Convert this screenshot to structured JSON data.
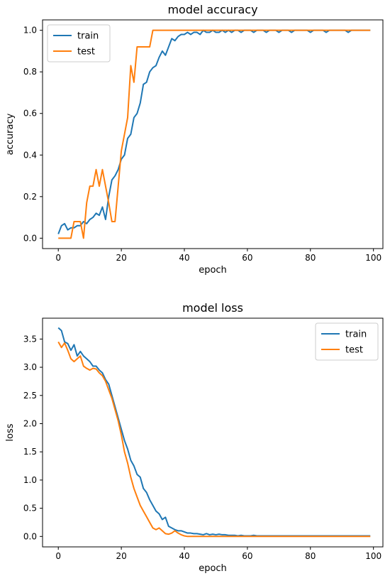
{
  "chart_data": [
    {
      "type": "line",
      "title": "model accuracy",
      "xlabel": "epoch",
      "ylabel": "accuracy",
      "xlim": [
        -5,
        103
      ],
      "ylim": [
        -0.05,
        1.05
      ],
      "xticks": [
        0,
        20,
        40,
        60,
        80,
        100
      ],
      "yticks": [
        0.0,
        0.2,
        0.4,
        0.6,
        0.8,
        1.0
      ],
      "tick_labels_x": [
        "0",
        "20",
        "40",
        "60",
        "80",
        "100"
      ],
      "tick_labels_y": [
        "0.0",
        "0.2",
        "0.4",
        "0.6",
        "0.8",
        "1.0"
      ],
      "legend_position": "upper-left",
      "series": [
        {
          "name": "train",
          "color": "#1f77b4",
          "x": [
            0,
            1,
            2,
            3,
            4,
            5,
            6,
            7,
            8,
            9,
            10,
            11,
            12,
            13,
            14,
            15,
            16,
            17,
            18,
            19,
            20,
            21,
            22,
            23,
            24,
            25,
            26,
            27,
            28,
            29,
            30,
            31,
            32,
            33,
            34,
            35,
            36,
            37,
            38,
            39,
            40,
            41,
            42,
            43,
            44,
            45,
            46,
            47,
            48,
            49,
            50,
            51,
            52,
            53,
            54,
            55,
            56,
            57,
            58,
            59,
            60,
            61,
            62,
            63,
            64,
            65,
            66,
            67,
            68,
            69,
            70,
            71,
            72,
            73,
            74,
            75,
            76,
            77,
            78,
            79,
            80,
            81,
            82,
            83,
            84,
            85,
            86,
            87,
            88,
            89,
            90,
            91,
            92,
            93,
            94,
            95,
            96,
            97,
            98,
            99
          ],
          "y": [
            0.02,
            0.06,
            0.07,
            0.04,
            0.05,
            0.05,
            0.06,
            0.06,
            0.08,
            0.07,
            0.09,
            0.1,
            0.12,
            0.11,
            0.15,
            0.09,
            0.2,
            0.28,
            0.3,
            0.33,
            0.38,
            0.4,
            0.48,
            0.5,
            0.58,
            0.6,
            0.65,
            0.74,
            0.75,
            0.8,
            0.82,
            0.83,
            0.87,
            0.9,
            0.88,
            0.92,
            0.96,
            0.95,
            0.97,
            0.98,
            0.98,
            0.99,
            0.98,
            0.99,
            0.99,
            0.98,
            1.0,
            0.99,
            0.99,
            1.0,
            0.99,
            0.99,
            1.0,
            0.99,
            1.0,
            0.99,
            1.0,
            1.0,
            0.99,
            1.0,
            1.0,
            1.0,
            0.99,
            1.0,
            1.0,
            1.0,
            0.99,
            1.0,
            1.0,
            1.0,
            0.99,
            1.0,
            1.0,
            1.0,
            0.99,
            1.0,
            1.0,
            1.0,
            1.0,
            1.0,
            0.99,
            1.0,
            1.0,
            1.0,
            1.0,
            0.99,
            1.0,
            1.0,
            1.0,
            1.0,
            1.0,
            1.0,
            0.99,
            1.0,
            1.0,
            1.0,
            1.0,
            1.0,
            1.0,
            1.0
          ]
        },
        {
          "name": "test",
          "color": "#ff7f0e",
          "x": [
            0,
            1,
            2,
            3,
            4,
            5,
            6,
            7,
            8,
            9,
            10,
            11,
            12,
            13,
            14,
            15,
            16,
            17,
            18,
            19,
            20,
            21,
            22,
            23,
            24,
            25,
            26,
            27,
            28,
            29,
            30,
            31,
            32,
            33,
            34,
            35,
            36,
            37,
            38,
            39,
            40,
            41,
            42,
            43,
            44,
            45,
            46,
            47,
            48,
            49,
            50,
            51,
            52,
            53,
            54,
            55,
            56,
            57,
            58,
            59,
            60,
            61,
            62,
            63,
            64,
            65,
            66,
            67,
            68,
            69,
            70,
            71,
            72,
            73,
            74,
            75,
            76,
            77,
            78,
            79,
            80,
            81,
            82,
            83,
            84,
            85,
            86,
            87,
            88,
            89,
            90,
            91,
            92,
            93,
            94,
            95,
            96,
            97,
            98,
            99
          ],
          "y": [
            0.0,
            0.0,
            0.0,
            0.0,
            0.0,
            0.08,
            0.08,
            0.08,
            0.0,
            0.17,
            0.25,
            0.25,
            0.33,
            0.25,
            0.33,
            0.25,
            0.17,
            0.08,
            0.08,
            0.25,
            0.42,
            0.5,
            0.58,
            0.83,
            0.75,
            0.92,
            0.92,
            0.92,
            0.92,
            0.92,
            1.0,
            1.0,
            1.0,
            1.0,
            1.0,
            1.0,
            1.0,
            1.0,
            1.0,
            1.0,
            1.0,
            1.0,
            1.0,
            1.0,
            1.0,
            1.0,
            1.0,
            1.0,
            1.0,
            1.0,
            1.0,
            1.0,
            1.0,
            1.0,
            1.0,
            1.0,
            1.0,
            1.0,
            1.0,
            1.0,
            1.0,
            1.0,
            1.0,
            1.0,
            1.0,
            1.0,
            1.0,
            1.0,
            1.0,
            1.0,
            1.0,
            1.0,
            1.0,
            1.0,
            1.0,
            1.0,
            1.0,
            1.0,
            1.0,
            1.0,
            1.0,
            1.0,
            1.0,
            1.0,
            1.0,
            1.0,
            1.0,
            1.0,
            1.0,
            1.0,
            1.0,
            1.0,
            1.0,
            1.0,
            1.0,
            1.0,
            1.0,
            1.0,
            1.0,
            1.0
          ]
        }
      ]
    },
    {
      "type": "line",
      "title": "model loss",
      "xlabel": "epoch",
      "ylabel": "loss",
      "xlim": [
        -5,
        103
      ],
      "ylim": [
        -0.185,
        3.87
      ],
      "xticks": [
        0,
        20,
        40,
        60,
        80,
        100
      ],
      "yticks": [
        0.0,
        0.5,
        1.0,
        1.5,
        2.0,
        2.5,
        3.0,
        3.5
      ],
      "tick_labels_x": [
        "0",
        "20",
        "40",
        "60",
        "80",
        "100"
      ],
      "tick_labels_y": [
        "0.0",
        "0.5",
        "1.0",
        "1.5",
        "2.0",
        "2.5",
        "3.0",
        "3.5"
      ],
      "legend_position": "upper-right",
      "series": [
        {
          "name": "train",
          "color": "#1f77b4",
          "x": [
            0,
            1,
            2,
            3,
            4,
            5,
            6,
            7,
            8,
            9,
            10,
            11,
            12,
            13,
            14,
            15,
            16,
            17,
            18,
            19,
            20,
            21,
            22,
            23,
            24,
            25,
            26,
            27,
            28,
            29,
            30,
            31,
            32,
            33,
            34,
            35,
            36,
            37,
            38,
            39,
            40,
            41,
            42,
            43,
            44,
            45,
            46,
            47,
            48,
            49,
            50,
            51,
            52,
            53,
            54,
            55,
            56,
            57,
            58,
            59,
            60,
            61,
            62,
            63,
            64,
            65,
            66,
            67,
            68,
            69,
            70,
            71,
            72,
            73,
            74,
            75,
            76,
            77,
            78,
            79,
            80,
            81,
            82,
            83,
            84,
            85,
            86,
            87,
            88,
            89,
            90,
            91,
            92,
            93,
            94,
            95,
            96,
            97,
            98,
            99
          ],
          "y": [
            3.7,
            3.65,
            3.45,
            3.42,
            3.3,
            3.4,
            3.2,
            3.28,
            3.2,
            3.15,
            3.1,
            3.02,
            3.02,
            2.95,
            2.9,
            2.78,
            2.7,
            2.5,
            2.3,
            2.1,
            1.9,
            1.7,
            1.55,
            1.35,
            1.25,
            1.1,
            1.05,
            0.85,
            0.78,
            0.65,
            0.55,
            0.45,
            0.4,
            0.3,
            0.34,
            0.18,
            0.15,
            0.12,
            0.1,
            0.1,
            0.08,
            0.06,
            0.06,
            0.05,
            0.05,
            0.04,
            0.03,
            0.05,
            0.03,
            0.04,
            0.03,
            0.04,
            0.03,
            0.03,
            0.02,
            0.02,
            0.02,
            0.01,
            0.02,
            0.01,
            0.01,
            0.01,
            0.02,
            0.01,
            0.01,
            0.01,
            0.01,
            0.01,
            0.01,
            0.01,
            0.01,
            0.01,
            0.01,
            0.01,
            0.01,
            0.01,
            0.01,
            0.01,
            0.01,
            0.01,
            0.01,
            0.01,
            0.01,
            0.01,
            0.01,
            0.01,
            0.01,
            0.01,
            0.01,
            0.01,
            0.01,
            0.01,
            0.01,
            0.01,
            0.01,
            0.01,
            0.01,
            0.01,
            0.01,
            0.01
          ]
        },
        {
          "name": "test",
          "color": "#ff7f0e",
          "x": [
            0,
            1,
            2,
            3,
            4,
            5,
            6,
            7,
            8,
            9,
            10,
            11,
            12,
            13,
            14,
            15,
            16,
            17,
            18,
            19,
            20,
            21,
            22,
            23,
            24,
            25,
            26,
            27,
            28,
            29,
            30,
            31,
            32,
            33,
            34,
            35,
            36,
            37,
            38,
            39,
            40,
            41,
            42,
            43,
            44,
            45,
            46,
            47,
            48,
            49,
            50,
            51,
            52,
            53,
            54,
            55,
            56,
            57,
            58,
            59,
            60,
            61,
            62,
            63,
            64,
            65,
            66,
            67,
            68,
            69,
            70,
            71,
            72,
            73,
            74,
            75,
            76,
            77,
            78,
            79,
            80,
            81,
            82,
            83,
            84,
            85,
            86,
            87,
            88,
            89,
            90,
            91,
            92,
            93,
            94,
            95,
            96,
            97,
            98,
            99
          ],
          "y": [
            3.45,
            3.35,
            3.43,
            3.3,
            3.15,
            3.1,
            3.15,
            3.2,
            3.02,
            2.98,
            2.95,
            2.98,
            2.97,
            2.9,
            2.85,
            2.75,
            2.6,
            2.45,
            2.25,
            2.05,
            1.8,
            1.5,
            1.3,
            1.05,
            0.85,
            0.7,
            0.55,
            0.45,
            0.35,
            0.25,
            0.15,
            0.12,
            0.15,
            0.1,
            0.05,
            0.04,
            0.06,
            0.1,
            0.06,
            0.03,
            0.01,
            0.0,
            0.0,
            0.0,
            0.0,
            0.0,
            0.0,
            0.0,
            0.0,
            0.0,
            0.0,
            0.0,
            0.0,
            0.0,
            0.0,
            0.0,
            0.0,
            0.0,
            0.0,
            0.0,
            0.0,
            0.0,
            0.0,
            0.0,
            0.0,
            0.0,
            0.0,
            0.0,
            0.0,
            0.0,
            0.0,
            0.0,
            0.0,
            0.0,
            0.0,
            0.0,
            0.0,
            0.0,
            0.0,
            0.0,
            0.0,
            0.0,
            0.0,
            0.0,
            0.0,
            0.0,
            0.0,
            0.0,
            0.0,
            0.0,
            0.0,
            0.0,
            0.0,
            0.0,
            0.0,
            0.0,
            0.0,
            0.0,
            0.0,
            0.0
          ]
        }
      ]
    }
  ]
}
